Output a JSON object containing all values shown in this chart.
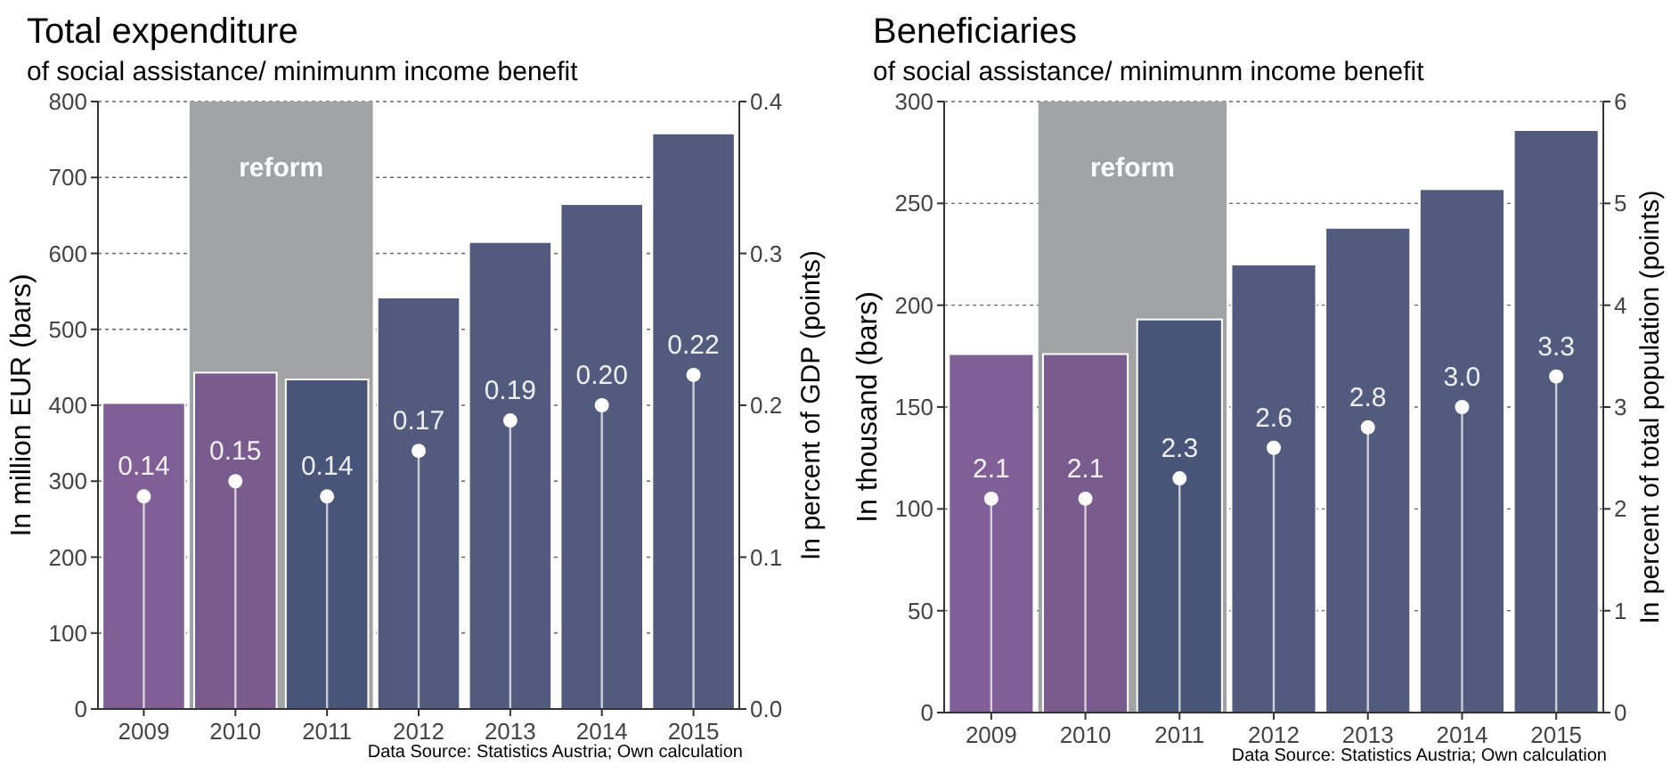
{
  "chart_data": [
    {
      "type": "bar",
      "title": "Total expenditure",
      "subtitle": "of social assistance/ minimunm income benefit",
      "ylabel": "In million EUR (bars)",
      "y2label": "In percent of GDP (points)",
      "categories": [
        "2009",
        "2010",
        "2011",
        "2012",
        "2013",
        "2014",
        "2015"
      ],
      "ylim": [
        0,
        800
      ],
      "yticks": [
        0,
        100,
        200,
        300,
        400,
        500,
        600,
        700,
        800
      ],
      "y2lim": [
        0,
        0.4
      ],
      "y2ticks": [
        {
          "value": 0,
          "label": "0.0"
        },
        0.1,
        0.2,
        0.3,
        0.4
      ],
      "grid": "y",
      "series": [
        {
          "colors": [
            "#7f5f96",
            "#7a5b8e",
            "#485478",
            "#525b7e",
            "#525b7e",
            "#525b7e",
            "#525b7e"
          ],
          "values": [
            403,
            443,
            434,
            542,
            615,
            665,
            758
          ]
        },
        {
          "type": "lollipop",
          "axis": "y2",
          "color": "#ffffff",
          "values": [
            0.14,
            0.15,
            0.14,
            0.17,
            0.19,
            0.2,
            0.22
          ],
          "value_labels": [
            "0.14",
            "0.15",
            "0.14",
            "0.17",
            "0.19",
            "0.20",
            "0.22"
          ]
        }
      ],
      "bands": [
        {
          "axis": "x",
          "from": "2010",
          "to": "2011",
          "label": "reform",
          "color": "#a2a3a5"
        }
      ],
      "annotations": [
        "Data Source: Statistics Austria; Own calculation"
      ]
    },
    {
      "type": "bar",
      "title": "Beneficiaries",
      "subtitle": "of social assistance/ minimunm income benefit",
      "ylabel": "In thousand (bars)",
      "y2label": "In percent of total population (points)",
      "categories": [
        "2009",
        "2010",
        "2011",
        "2012",
        "2013",
        "2014",
        "2015"
      ],
      "ylim": [
        0,
        300
      ],
      "yticks": [
        0,
        50,
        100,
        150,
        200,
        250,
        300
      ],
      "y2lim": [
        0,
        6
      ],
      "y2ticks": [
        0,
        1,
        2,
        3,
        4,
        5,
        6
      ],
      "grid": "y",
      "series": [
        {
          "colors": [
            "#7f5f96",
            "#7a5b8e",
            "#485478",
            "#525b7e",
            "#525b7e",
            "#525b7e",
            "#525b7e"
          ],
          "values": [
            176,
            176,
            193,
            220,
            238,
            257,
            286
          ]
        },
        {
          "type": "lollipop",
          "axis": "y2",
          "color": "#ffffff",
          "values": [
            2.1,
            2.1,
            2.3,
            2.6,
            2.8,
            3.0,
            3.3
          ],
          "value_labels": [
            "2.1",
            "2.1",
            "2.3",
            "2.6",
            "2.8",
            "3.0",
            "3.3"
          ]
        }
      ],
      "bands": [
        {
          "axis": "x",
          "from": "2010",
          "to": "2011",
          "label": "reform",
          "color": "#a2a3a5"
        }
      ],
      "annotations": [
        "Data Source: Statistics Austria; Own calculation"
      ]
    }
  ]
}
